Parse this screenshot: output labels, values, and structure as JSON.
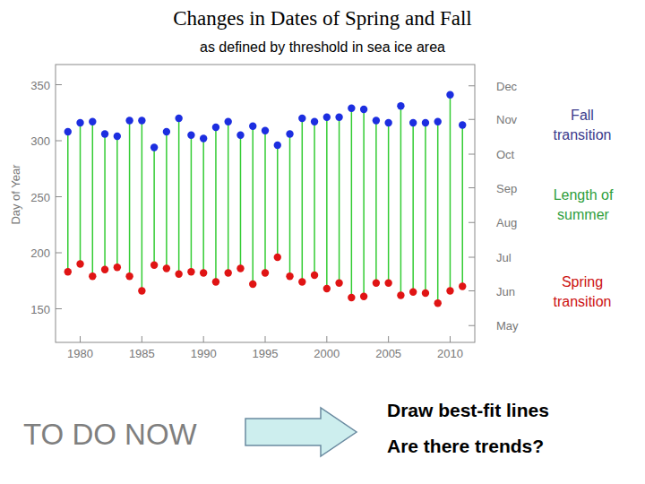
{
  "chart_data": {
    "type": "scatter",
    "title": "Changes in Dates of Spring and Fall",
    "subtitle": "as defined by threshold in sea ice area",
    "y_label": "Day of Year",
    "x": [
      1979,
      1980,
      1981,
      1982,
      1983,
      1984,
      1985,
      1986,
      1987,
      1988,
      1989,
      1990,
      1991,
      1992,
      1993,
      1994,
      1995,
      1996,
      1997,
      1998,
      1999,
      2000,
      2001,
      2002,
      2003,
      2004,
      2005,
      2006,
      2007,
      2008,
      2009,
      2010,
      2011
    ],
    "series": [
      {
        "name": "Fall transition",
        "color": "#1c2ee0",
        "marker": "circle",
        "values": [
          308,
          316,
          317,
          306,
          304,
          318,
          318,
          294,
          308,
          320,
          305,
          302,
          312,
          317,
          305,
          313,
          309,
          296,
          306,
          320,
          317,
          321,
          321,
          329,
          328,
          318,
          316,
          331,
          316,
          316,
          317,
          341,
          314
        ]
      },
      {
        "name": "Spring transition",
        "color": "#e01414",
        "marker": "circle",
        "values": [
          183,
          190,
          179,
          185,
          187,
          179,
          166,
          189,
          186,
          181,
          183,
          182,
          174,
          182,
          186,
          172,
          182,
          196,
          179,
          174,
          180,
          168,
          173,
          160,
          161,
          173,
          173,
          162,
          165,
          164,
          155,
          166,
          170
        ]
      }
    ],
    "span": {
      "name": "Length of summer",
      "color": "#33cc33"
    },
    "xlim": [
      1978,
      2012
    ],
    "xticks": [
      1980,
      1985,
      1990,
      1995,
      2000,
      2005,
      2010
    ],
    "ylim": [
      120,
      368
    ],
    "yticks": [
      150,
      200,
      250,
      300,
      350
    ],
    "y2lim": [
      120,
      368
    ],
    "y2ticks": [
      {
        "value": 349,
        "label": "Dec"
      },
      {
        "value": 319,
        "label": "Nov"
      },
      {
        "value": 288,
        "label": "Oct"
      },
      {
        "value": 258,
        "label": "Sep"
      },
      {
        "value": 227,
        "label": "Aug"
      },
      {
        "value": 196,
        "label": "Jul"
      },
      {
        "value": 166,
        "label": "Jun"
      },
      {
        "value": 135,
        "label": "May"
      }
    ],
    "grid": false
  },
  "slide": {
    "todo": "TO DO NOW",
    "tasks": [
      "Draw best-fit lines",
      "Are there trends?"
    ]
  }
}
